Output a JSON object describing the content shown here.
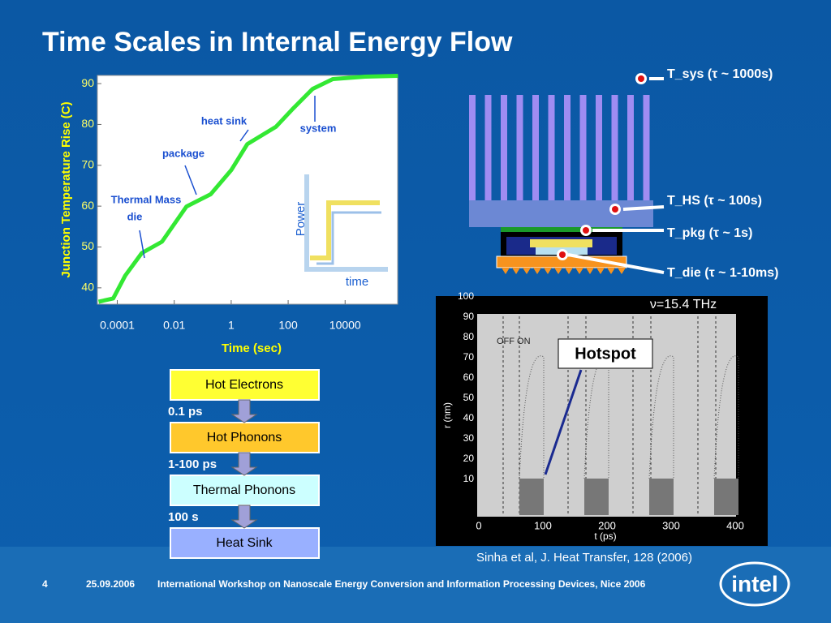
{
  "title": "Time Scales in Internal Energy Flow",
  "chart_data": {
    "type": "line",
    "log_x": true,
    "color": "#33e833",
    "x_label": "Time (sec)",
    "y_label": "Junction Temperature Rise (C)",
    "x": [
      2.2e-05,
      7.2e-05,
      0.00019,
      0.00072,
      0.0037,
      0.027,
      0.19,
      1,
      3.7,
      37,
      140,
      720,
      3700,
      51000,
      720000
    ],
    "series": [
      {
        "name": "Junction temperature",
        "color": "#33e833",
        "values": [
          36.6,
          37.4,
          43,
          48.5,
          51.3,
          59.9,
          62.9,
          68.8,
          75.2,
          79.4,
          83.7,
          88.7,
          91.1,
          91.7,
          91.9
        ]
      }
    ],
    "xlim": [
      2e-05,
      700000
    ],
    "ylim": [
      36,
      92
    ],
    "xticks": [
      0.0001,
      0.01,
      1,
      100,
      10000
    ],
    "yticks": [
      40,
      50,
      60,
      70,
      80,
      90
    ],
    "annotations": [
      "Thermal Mass",
      "die",
      "package",
      "heat sink",
      "system"
    ]
  },
  "inset": {
    "y_label": "Power",
    "x_label": "time"
  },
  "heat_sink_labels": [
    "T_sys (τ ~ 1000s)",
    "T_HS (τ ~ 100s)",
    "T_pkg (τ ~ 1s)",
    "T_die (τ ~ 1-10ms)"
  ],
  "flow": {
    "boxes": [
      "Hot Electrons",
      "Hot Phonons",
      "Thermal Phonons",
      "Heat Sink"
    ],
    "times": [
      "0.1 ps",
      "1-100 ps",
      "100 s"
    ]
  },
  "hotspot": {
    "frequency": "ν=15.4 THz",
    "yticks": [
      100,
      90,
      80,
      70,
      60,
      50,
      40,
      30,
      20,
      10
    ],
    "xticks": [
      0,
      100,
      200,
      300,
      400
    ],
    "y_label": "r (nm)",
    "x_label": "t (ps)",
    "switch": "OFF  ON",
    "callout": "Hotspot"
  },
  "citation": "Sinha et al, J. Heat Transfer, 128 (2006)",
  "footer": {
    "page": "4",
    "date": "25.09.2006",
    "event": "International Workshop on Nanoscale Energy Conversion and Information Processing Devices, Nice 2006"
  },
  "logo": "intel"
}
